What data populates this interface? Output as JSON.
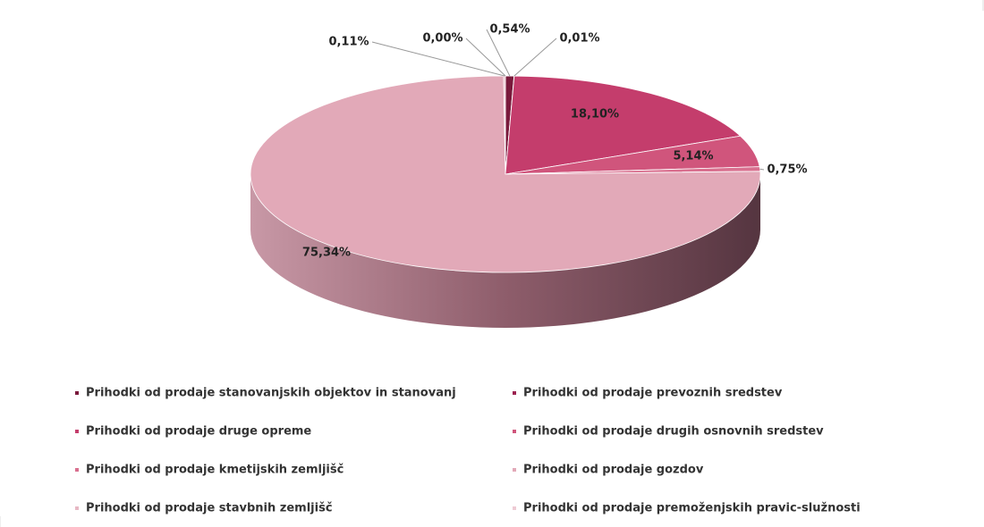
{
  "chart_data": {
    "type": "pie3d",
    "categories": [
      "Prihodki od prodaje stanovanjskih objektov in stanovanj",
      "Prihodki od prodaje prevoznih sredstev",
      "Prihodki od prodaje druge opreme",
      "Prihodki od prodaje drugih osnovnih sredstev",
      "Prihodki od prodaje kmetijskih zemljišč",
      "Prihodki od prodaje gozdov",
      "Prihodki od prodaje stavbnih zemljišč",
      "Prihodki od prodaje premoženjskih pravic-služnosti"
    ],
    "values": [
      0.54,
      0.01,
      18.1,
      5.14,
      0.75,
      75.34,
      0.11,
      0.0
    ],
    "value_labels": [
      "0,54%",
      "0,01%",
      "18,10%",
      "5,14%",
      "0,75%",
      "75,34%",
      "0,11%",
      "0,00%"
    ],
    "colors": [
      "#7a1a3c",
      "#9c2350",
      "#c43d6c",
      "#d0557c",
      "#d9708f",
      "#e2a9b8",
      "#e7b8c4",
      "#eecbd4"
    ],
    "legend": "bottom"
  }
}
